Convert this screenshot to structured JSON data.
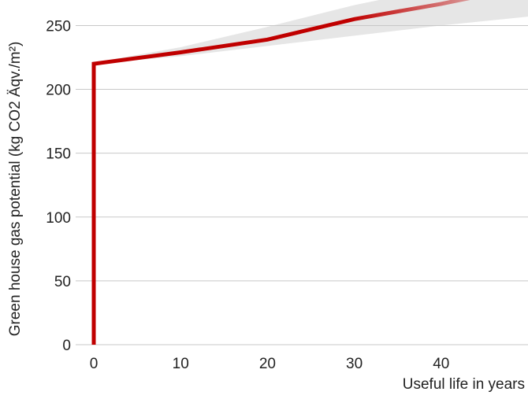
{
  "chart_data": {
    "type": "line",
    "title": "",
    "xlabel": "Useful life in years",
    "ylabel": "Green house gas potential (kg CO2 Äqv./m²)",
    "x_ticks": [
      0,
      10,
      20,
      30,
      40
    ],
    "y_ticks": [
      0,
      50,
      100,
      150,
      200,
      250
    ],
    "xlim": [
      -1,
      50
    ],
    "ylim": [
      0,
      270
    ],
    "grid": "horizontal",
    "colors": {
      "line": "#c00000",
      "band": "#e6e6e6",
      "grid": "#c8c8c8",
      "text": "#222222"
    },
    "series": [
      {
        "points": [
          {
            "x": 0,
            "y": 0
          },
          {
            "x": 0,
            "y": 220
          },
          {
            "x": 10,
            "y": 229
          },
          {
            "x": 20,
            "y": 239
          },
          {
            "x": 30,
            "y": 255
          },
          {
            "x": 40,
            "y": 267
          },
          {
            "x": 48,
            "y": 278
          }
        ],
        "band": [
          {
            "x": 0,
            "y_low": 220,
            "y_high": 221
          },
          {
            "x": 10,
            "y_low": 226,
            "y_high": 233
          },
          {
            "x": 20,
            "y_low": 234,
            "y_high": 249
          },
          {
            "x": 30,
            "y_low": 242,
            "y_high": 266
          },
          {
            "x": 40,
            "y_low": 250,
            "y_high": 280
          },
          {
            "x": 50,
            "y_low": 257,
            "y_high": 292
          }
        ]
      }
    ]
  }
}
